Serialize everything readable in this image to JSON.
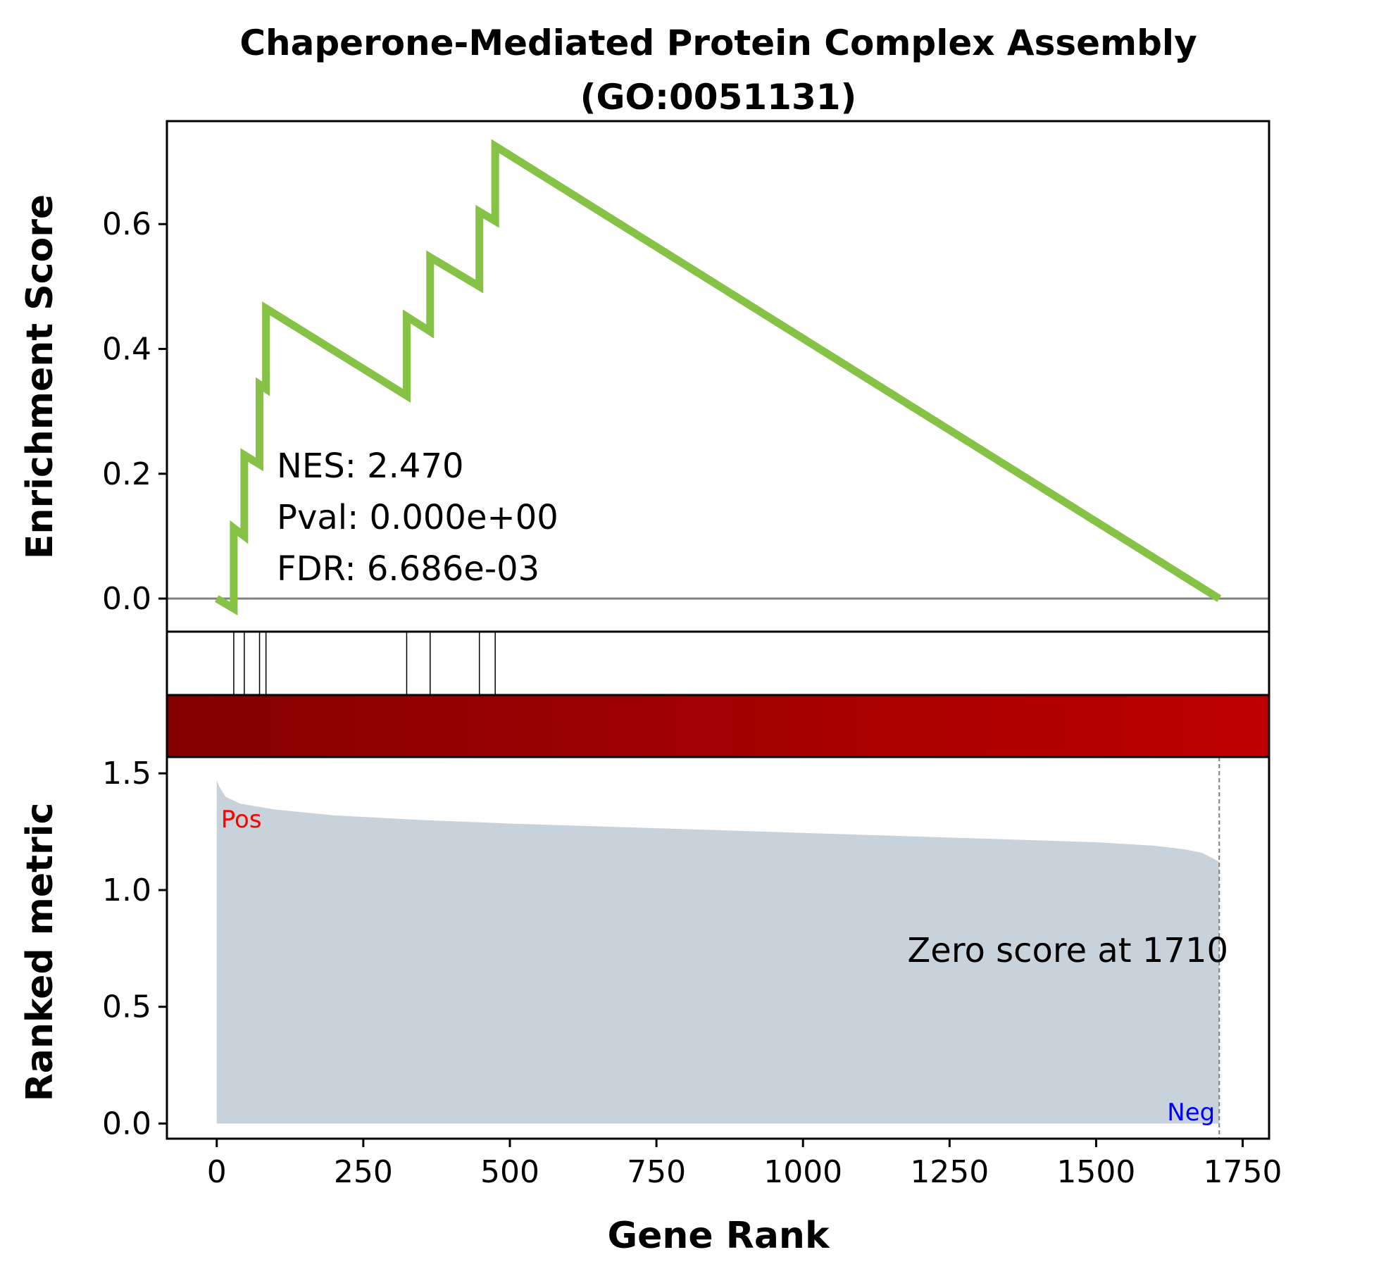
{
  "chart_data": {
    "type": "line",
    "title": "Chaperone-Mediated Protein Complex Assembly\n(GO:0051131)",
    "title_lines": [
      "Chaperone-Mediated Protein Complex Assembly",
      "(GO:0051131)"
    ],
    "xlabel": "Gene Rank",
    "xlim": [
      -85,
      1795
    ],
    "xticks": [
      0,
      250,
      500,
      750,
      1000,
      1250,
      1500,
      1750
    ],
    "grid": false,
    "enrichment": {
      "ylabel": "Enrichment Score",
      "ylim": [
        -0.053,
        0.765
      ],
      "yticks": [
        0.0,
        0.2,
        0.4,
        0.6
      ],
      "ytick_labels": [
        "0.0",
        "0.2",
        "0.4",
        "0.6"
      ],
      "color": "#86c245",
      "points": [
        [
          0,
          0.0
        ],
        [
          29,
          -0.016
        ],
        [
          29,
          0.113
        ],
        [
          47,
          0.1
        ],
        [
          47,
          0.23
        ],
        [
          73,
          0.215
        ],
        [
          73,
          0.343
        ],
        [
          84,
          0.336
        ],
        [
          84,
          0.465
        ],
        [
          324,
          0.325
        ],
        [
          324,
          0.452
        ],
        [
          364,
          0.428
        ],
        [
          364,
          0.547
        ],
        [
          448,
          0.5
        ],
        [
          448,
          0.62
        ],
        [
          475,
          0.605
        ],
        [
          475,
          0.725
        ],
        [
          1710,
          0.0
        ]
      ],
      "stats": [
        "NES: 2.470",
        "Pval: 0.000e+00",
        "FDR: 6.686e-03"
      ]
    },
    "hits": [
      29,
      47,
      73,
      84,
      324,
      364,
      448,
      475
    ],
    "colorbar": {
      "from": "#850000",
      "to": "#be0000"
    },
    "ranked_metric": {
      "ylabel": "Ranked metric",
      "ylim": [
        -0.065,
        1.57
      ],
      "yticks": [
        0.0,
        0.5,
        1.0,
        1.5
      ],
      "ytick_labels": [
        "0.0",
        "0.5",
        "1.0",
        "1.5"
      ],
      "fill_color": "#c8d2db",
      "curve": [
        [
          0,
          1.47
        ],
        [
          5,
          1.44
        ],
        [
          15,
          1.4
        ],
        [
          40,
          1.37
        ],
        [
          100,
          1.345
        ],
        [
          200,
          1.32
        ],
        [
          350,
          1.3
        ],
        [
          500,
          1.285
        ],
        [
          750,
          1.265
        ],
        [
          1000,
          1.245
        ],
        [
          1250,
          1.225
        ],
        [
          1500,
          1.205
        ],
        [
          1600,
          1.19
        ],
        [
          1650,
          1.175
        ],
        [
          1680,
          1.16
        ],
        [
          1700,
          1.135
        ],
        [
          1710,
          1.12
        ],
        [
          1710,
          0.0
        ],
        [
          0,
          0.0
        ]
      ],
      "zero_score_rank": 1710,
      "zero_score_label": "Zero score at 1710",
      "pos_label": "Pos",
      "neg_label": "Neg",
      "pos_color": "#ff0000",
      "neg_color": "#0000ff"
    }
  }
}
